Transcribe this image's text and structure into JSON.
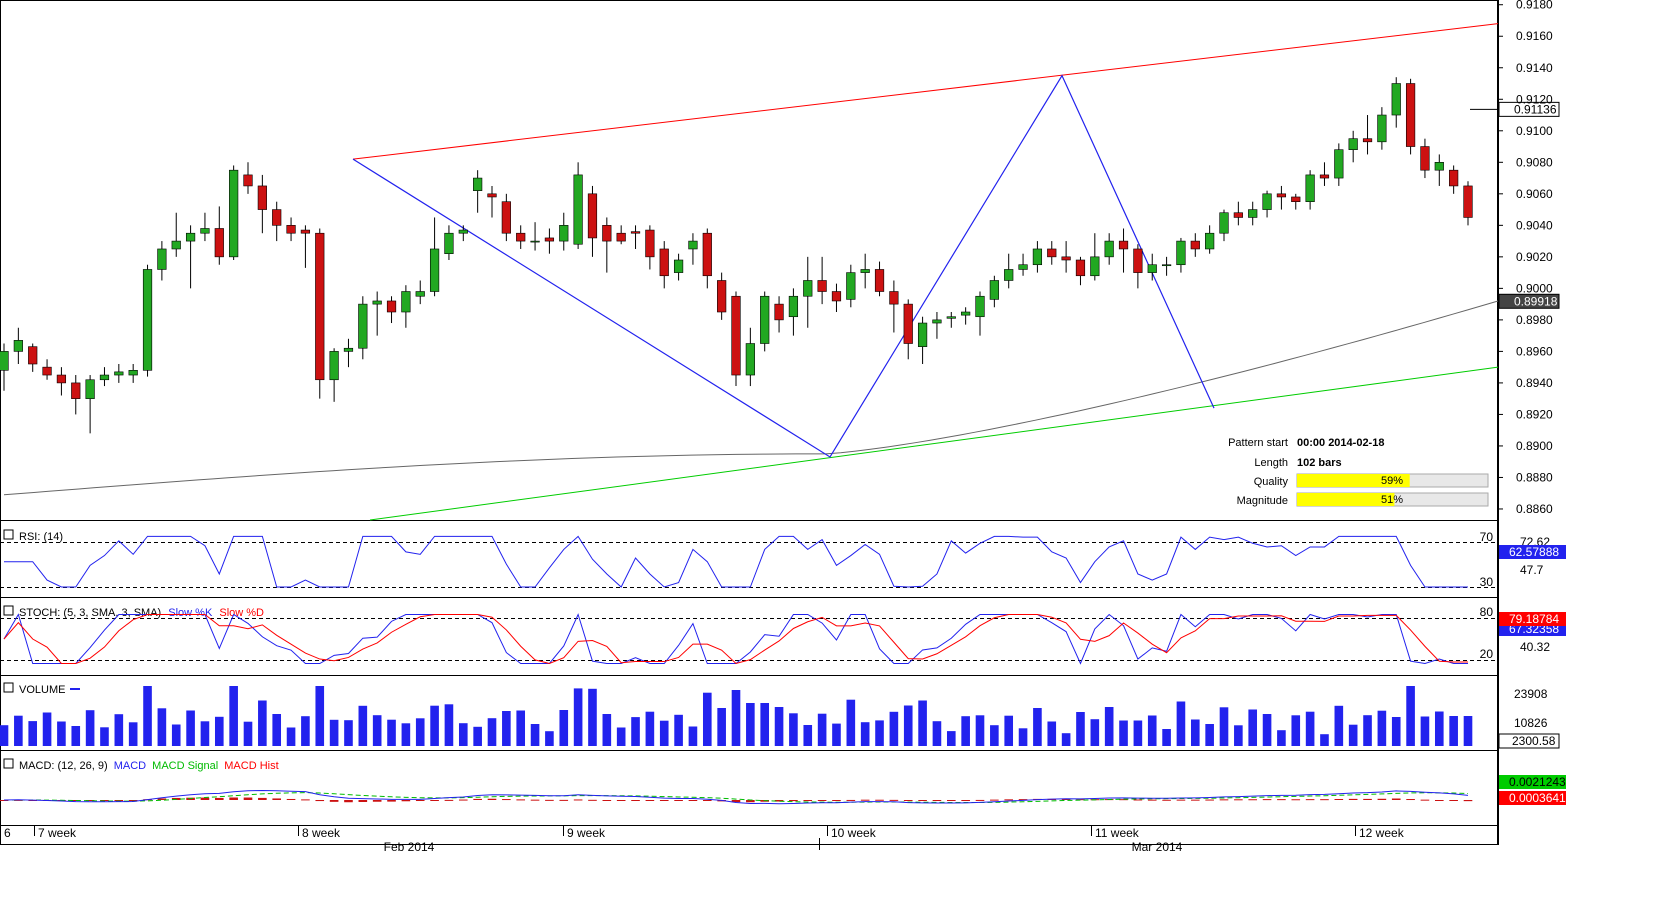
{
  "chart_data": {
    "type": "candlestick",
    "instrument_price_scale": {
      "ticks": [
        "0.9180",
        "0.9160",
        "0.9140",
        "0.9120",
        "0.9100",
        "0.9080",
        "0.9060",
        "0.9040",
        "0.9020",
        "0.9000",
        "0.8980",
        "0.8960",
        "0.8940",
        "0.8920",
        "0.8900",
        "0.8880",
        "0.8860"
      ],
      "ylim": [
        0.8853,
        0.9183
      ],
      "last_price": "0.91136",
      "ma_value": "0.89918"
    },
    "x_axis": {
      "week_labels": [
        "6",
        "7 week",
        "8 week",
        "9 week",
        "10 week",
        "11 week",
        "12 week"
      ],
      "month_labels": [
        "Feb 2014",
        "Mar 2014"
      ]
    },
    "candles": [
      [
        0.8948,
        0.896,
        0.8935,
        0.8965
      ],
      [
        0.896,
        0.8967,
        0.8952,
        0.8975
      ],
      [
        0.8963,
        0.8952,
        0.8947,
        0.8965
      ],
      [
        0.895,
        0.8945,
        0.8942,
        0.8955
      ],
      [
        0.8945,
        0.894,
        0.8932,
        0.895
      ],
      [
        0.894,
        0.893,
        0.892,
        0.8945
      ],
      [
        0.893,
        0.8942,
        0.8908,
        0.8945
      ],
      [
        0.8942,
        0.8945,
        0.8938,
        0.895
      ],
      [
        0.8945,
        0.8947,
        0.894,
        0.8952
      ],
      [
        0.8945,
        0.8948,
        0.894,
        0.8952
      ],
      [
        0.8948,
        0.9012,
        0.8944,
        0.9015
      ],
      [
        0.9012,
        0.9025,
        0.9005,
        0.903
      ],
      [
        0.9025,
        0.903,
        0.902,
        0.9048
      ],
      [
        0.903,
        0.9035,
        0.9,
        0.904
      ],
      [
        0.9035,
        0.9038,
        0.903,
        0.9048
      ],
      [
        0.9038,
        0.902,
        0.9015,
        0.9052
      ],
      [
        0.902,
        0.9075,
        0.9018,
        0.9078
      ],
      [
        0.9072,
        0.9065,
        0.906,
        0.908
      ],
      [
        0.9065,
        0.905,
        0.9035,
        0.9072
      ],
      [
        0.905,
        0.904,
        0.903,
        0.9055
      ],
      [
        0.904,
        0.9035,
        0.903,
        0.9045
      ],
      [
        0.9037,
        0.9035,
        0.9013,
        0.904
      ],
      [
        0.9035,
        0.8942,
        0.893,
        0.9038
      ],
      [
        0.8942,
        0.896,
        0.8928,
        0.8962
      ],
      [
        0.896,
        0.8962,
        0.895,
        0.8968
      ],
      [
        0.8962,
        0.899,
        0.8955,
        0.8995
      ],
      [
        0.899,
        0.8992,
        0.897,
        0.8998
      ],
      [
        0.8992,
        0.8985,
        0.8978,
        0.8995
      ],
      [
        0.8985,
        0.8998,
        0.8975,
        0.9002
      ],
      [
        0.8995,
        0.8998,
        0.899,
        0.9005
      ],
      [
        0.8998,
        0.9025,
        0.8995,
        0.9045
      ],
      [
        0.9022,
        0.9035,
        0.9018,
        0.904
      ],
      [
        0.9035,
        0.9037,
        0.903,
        0.904
      ],
      [
        0.9062,
        0.907,
        0.9048,
        0.9075
      ],
      [
        0.906,
        0.9058,
        0.9045,
        0.9065
      ],
      [
        0.9055,
        0.9035,
        0.903,
        0.906
      ],
      [
        0.9035,
        0.903,
        0.9025,
        0.904
      ],
      [
        0.903,
        0.903,
        0.9024,
        0.9042
      ],
      [
        0.9032,
        0.903,
        0.9022,
        0.9038
      ],
      [
        0.903,
        0.904,
        0.9024,
        0.9048
      ],
      [
        0.9028,
        0.9072,
        0.9025,
        0.908
      ],
      [
        0.906,
        0.9032,
        0.902,
        0.9065
      ],
      [
        0.904,
        0.903,
        0.901,
        0.9045
      ],
      [
        0.9035,
        0.903,
        0.9028,
        0.904
      ],
      [
        0.9036,
        0.9035,
        0.9025,
        0.904
      ],
      [
        0.9037,
        0.902,
        0.9012,
        0.904
      ],
      [
        0.9025,
        0.9008,
        0.9,
        0.903
      ],
      [
        0.901,
        0.9018,
        0.9005,
        0.9022
      ],
      [
        0.9025,
        0.903,
        0.9015,
        0.9035
      ],
      [
        0.9035,
        0.9008,
        0.9,
        0.9038
      ],
      [
        0.9005,
        0.8985,
        0.898,
        0.901
      ],
      [
        0.8995,
        0.8945,
        0.8938,
        0.8998
      ],
      [
        0.8945,
        0.8965,
        0.8938,
        0.8975
      ],
      [
        0.8965,
        0.8995,
        0.896,
        0.8998
      ],
      [
        0.899,
        0.898,
        0.8972,
        0.8995
      ],
      [
        0.8982,
        0.8995,
        0.897,
        0.9
      ],
      [
        0.8995,
        0.9005,
        0.8975,
        0.902
      ],
      [
        0.9005,
        0.8998,
        0.899,
        0.902
      ],
      [
        0.8998,
        0.8992,
        0.8985,
        0.9003
      ],
      [
        0.8993,
        0.901,
        0.8988,
        0.9015
      ],
      [
        0.901,
        0.9012,
        0.9,
        0.9022
      ],
      [
        0.9012,
        0.8998,
        0.8995,
        0.9017
      ],
      [
        0.8998,
        0.899,
        0.8972,
        0.9005
      ],
      [
        0.899,
        0.8965,
        0.8955,
        0.8993
      ],
      [
        0.8963,
        0.8978,
        0.8952,
        0.8982
      ],
      [
        0.8978,
        0.898,
        0.8968,
        0.8985
      ],
      [
        0.8981,
        0.8982,
        0.8975,
        0.8985
      ],
      [
        0.8983,
        0.8985,
        0.8977,
        0.8988
      ],
      [
        0.8982,
        0.8995,
        0.897,
        0.8998
      ],
      [
        0.8993,
        0.9005,
        0.8988,
        0.9008
      ],
      [
        0.9005,
        0.9012,
        0.9,
        0.9022
      ],
      [
        0.9012,
        0.9015,
        0.9008,
        0.9022
      ],
      [
        0.9015,
        0.9025,
        0.901,
        0.903
      ],
      [
        0.9025,
        0.902,
        0.9015,
        0.903
      ],
      [
        0.902,
        0.9018,
        0.901,
        0.903
      ],
      [
        0.9018,
        0.9008,
        0.9002,
        0.902
      ],
      [
        0.9008,
        0.902,
        0.9005,
        0.9035
      ],
      [
        0.902,
        0.903,
        0.9015,
        0.9035
      ],
      [
        0.903,
        0.9025,
        0.901,
        0.9038
      ],
      [
        0.9025,
        0.901,
        0.9,
        0.9028
      ],
      [
        0.901,
        0.9015,
        0.9005,
        0.9022
      ],
      [
        0.9015,
        0.9015,
        0.9008,
        0.902
      ],
      [
        0.9015,
        0.903,
        0.901,
        0.9032
      ],
      [
        0.903,
        0.9025,
        0.902,
        0.9035
      ],
      [
        0.9025,
        0.9035,
        0.9022,
        0.904
      ],
      [
        0.9035,
        0.9048,
        0.903,
        0.905
      ],
      [
        0.9048,
        0.9045,
        0.904,
        0.9055
      ],
      [
        0.9045,
        0.905,
        0.904,
        0.9055
      ],
      [
        0.905,
        0.906,
        0.9045,
        0.9062
      ],
      [
        0.906,
        0.9058,
        0.905,
        0.9065
      ],
      [
        0.9058,
        0.9055,
        0.905,
        0.906
      ],
      [
        0.9055,
        0.9072,
        0.905,
        0.9075
      ],
      [
        0.9072,
        0.907,
        0.9065,
        0.908
      ],
      [
        0.907,
        0.9088,
        0.9065,
        0.9092
      ],
      [
        0.9088,
        0.9095,
        0.908,
        0.91
      ],
      [
        0.9095,
        0.9093,
        0.9085,
        0.911
      ],
      [
        0.9093,
        0.911,
        0.9088,
        0.9115
      ],
      [
        0.911,
        0.913,
        0.9102,
        0.9134
      ],
      [
        0.913,
        0.909,
        0.9085,
        0.9133
      ],
      [
        0.909,
        0.9075,
        0.907,
        0.9095
      ],
      [
        0.9075,
        0.908,
        0.9065,
        0.9085
      ],
      [
        0.9075,
        0.9065,
        0.906,
        0.9078
      ],
      [
        0.9065,
        0.9045,
        0.904,
        0.9068
      ]
    ],
    "pattern_lines": {
      "resistance": {
        "from": [
          0,
          0.9082
        ],
        "to": [
          1,
          0.9168
        ],
        "color": "#ff0000"
      },
      "support": {
        "from": [
          0,
          0.8853
        ],
        "to": [
          1,
          0.895
        ],
        "color": "#00cc00"
      },
      "zigzag": [
        [
          0.9082
        ],
        [
          0.8893
        ],
        [
          0.9135
        ],
        [
          0.8924
        ]
      ]
    },
    "pattern_info": {
      "pattern_start_label": "Pattern start",
      "pattern_start_value": "00:00 2014-02-18",
      "length_label": "Length",
      "length_value": "102 bars",
      "quality_label": "Quality",
      "quality_value": "59%",
      "quality_fraction": 0.59,
      "magnitude_label": "Magnitude",
      "magnitude_value": "51%",
      "magnitude_fraction": 0.51
    },
    "rsi": {
      "label": "RSI: (14)",
      "levels": [
        "70",
        "30"
      ],
      "ticks": [
        "72.62",
        "47.7"
      ],
      "current": "62.57888"
    },
    "stoch": {
      "label_prefix": "STOCH: (5, 3, SMA, 3, SMA)",
      "k_label": "Slow %K",
      "d_label": "Slow %D",
      "levels": [
        "80",
        "20"
      ],
      "ticks": [
        "40.32"
      ],
      "current_k": "79.18784",
      "current_d": "67.32358"
    },
    "volume": {
      "label": "VOLUME",
      "ticks": [
        "23908",
        "10826"
      ],
      "current": "2300.58"
    },
    "macd": {
      "label_prefix": "MACD: (12, 26, 9)",
      "macd_label": "MACD",
      "signal_label": "MACD Signal",
      "hist_label": "MACD Hist",
      "current_macd": "0.0021243",
      "current_hist": "0.0003641"
    },
    "colors": {
      "bull": "#22a822",
      "bear": "#cc1111",
      "blue": "#2222ee",
      "red": "#ff0000",
      "green": "#00cc00",
      "ma": "#666666"
    }
  }
}
